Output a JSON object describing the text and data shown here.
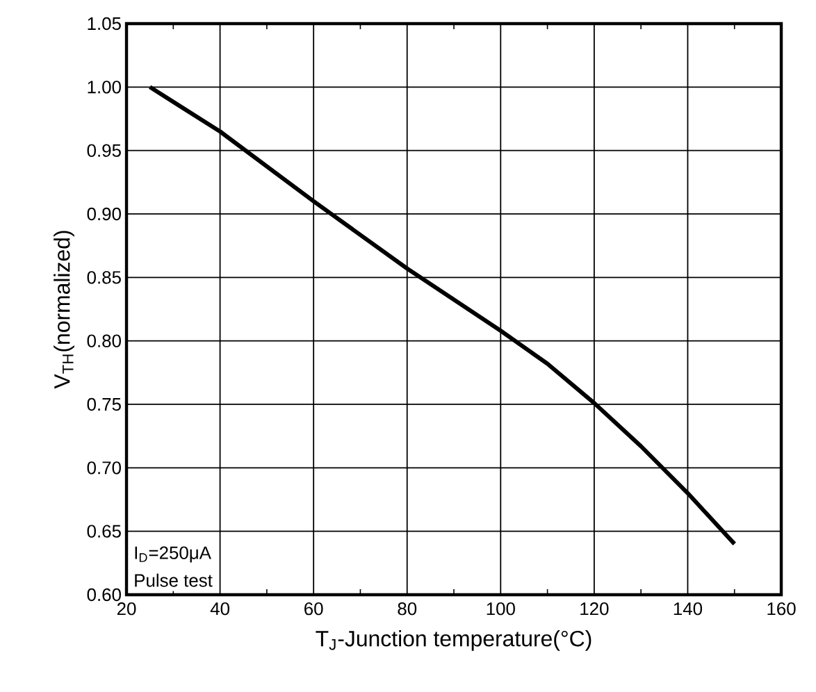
{
  "chart_data": {
    "type": "line",
    "xlabel": "T$_{J}$-Junction temperature(°C)",
    "ylabel": "V$_{TH}$(normalized)",
    "x": [
      25,
      40,
      60,
      80,
      100,
      110,
      120,
      130,
      140,
      150
    ],
    "series": [
      {
        "color": "#000000",
        "values": [
          1.0,
          0.965,
          0.91,
          0.857,
          0.808,
          0.782,
          0.751,
          0.717,
          0.68,
          0.64
        ]
      }
    ],
    "xlim": [
      20,
      160
    ],
    "xticks": [
      20,
      40,
      60,
      80,
      100,
      120,
      140,
      160
    ],
    "ylim": [
      0.6,
      1.05
    ],
    "yticks": [
      {
        "value": 0.6,
        "label": "0.60"
      },
      {
        "value": 0.65,
        "label": "0.65"
      },
      {
        "value": 0.7,
        "label": "0.70"
      },
      {
        "value": 0.75,
        "label": "0.75"
      },
      {
        "value": 0.8,
        "label": "0.80"
      },
      {
        "value": 0.85,
        "label": "0.85"
      },
      {
        "value": 0.9,
        "label": "0.90"
      },
      {
        "value": 0.95,
        "label": "0.95"
      },
      {
        "value": 1.0,
        "label": "1.00"
      },
      {
        "value": 1.05,
        "label": "1.05"
      }
    ],
    "grid": true,
    "marker": "none",
    "line_style": "solid",
    "annotations": [
      "I$_{D}$=250μA",
      "Pulse test"
    ]
  }
}
